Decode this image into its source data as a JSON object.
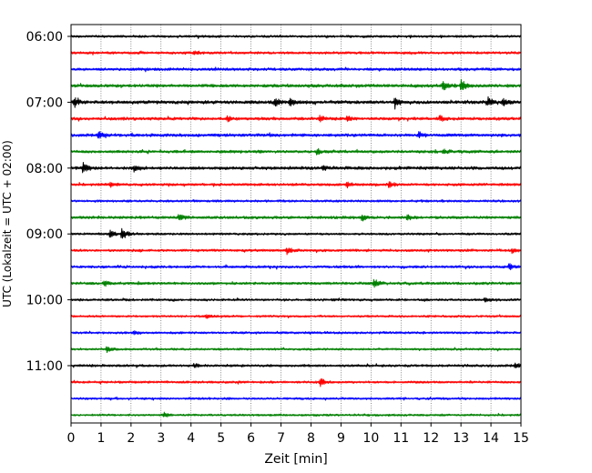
{
  "chart_data": {
    "type": "line",
    "xlabel": "Zeit  [min]",
    "ylabel": "UTC (Lokalzeit = UTC + 02:00)",
    "xlim": [
      0,
      15
    ],
    "x_ticks": [
      "0",
      "1",
      "2",
      "3",
      "4",
      "5",
      "6",
      "7",
      "8",
      "9",
      "10",
      "11",
      "12",
      "13",
      "14",
      "15"
    ],
    "y_ticks": [
      "06:00",
      "07:00",
      "08:00",
      "09:00",
      "10:00",
      "11:00"
    ],
    "vertical_grid": true,
    "row_interval_minutes": 15,
    "colors": [
      "#000000",
      "#ff0000",
      "#0000ff",
      "#008000"
    ],
    "series": [
      {
        "start": "06:00",
        "color": "#000000",
        "noise": 1.4,
        "events": []
      },
      {
        "start": "06:15",
        "color": "#ff0000",
        "noise": 1.5,
        "events": [
          [
            4.1,
            2.5
          ]
        ]
      },
      {
        "start": "06:30",
        "color": "#0000ff",
        "noise": 1.7,
        "events": []
      },
      {
        "start": "06:45",
        "color": "#008000",
        "noise": 1.9,
        "events": [
          [
            12.4,
            5.5
          ],
          [
            13.0,
            7.5
          ]
        ]
      },
      {
        "start": "07:00",
        "color": "#000000",
        "noise": 2.0,
        "events": [
          [
            0.1,
            5.5
          ],
          [
            6.8,
            5
          ],
          [
            7.3,
            4.5
          ],
          [
            10.8,
            6
          ],
          [
            13.9,
            4.5
          ],
          [
            14.4,
            4
          ]
        ]
      },
      {
        "start": "07:15",
        "color": "#ff0000",
        "noise": 1.8,
        "events": [
          [
            5.2,
            3
          ],
          [
            8.3,
            3.5
          ],
          [
            9.2,
            3
          ],
          [
            12.3,
            3
          ]
        ]
      },
      {
        "start": "07:30",
        "color": "#0000ff",
        "noise": 1.8,
        "events": [
          [
            0.9,
            4
          ],
          [
            11.6,
            3.5
          ]
        ]
      },
      {
        "start": "07:45",
        "color": "#008000",
        "noise": 1.7,
        "events": [
          [
            8.2,
            3
          ],
          [
            12.4,
            3
          ]
        ]
      },
      {
        "start": "08:00",
        "color": "#000000",
        "noise": 1.9,
        "events": [
          [
            0.4,
            6
          ],
          [
            2.1,
            3.5
          ],
          [
            8.4,
            3
          ]
        ]
      },
      {
        "start": "08:15",
        "color": "#ff0000",
        "noise": 1.6,
        "events": [
          [
            1.3,
            3
          ],
          [
            9.2,
            3
          ],
          [
            10.6,
            3.5
          ]
        ]
      },
      {
        "start": "08:30",
        "color": "#0000ff",
        "noise": 1.4,
        "events": []
      },
      {
        "start": "08:45",
        "color": "#008000",
        "noise": 1.7,
        "events": [
          [
            3.6,
            4.5
          ],
          [
            9.7,
            3
          ],
          [
            11.2,
            3
          ]
        ]
      },
      {
        "start": "09:00",
        "color": "#000000",
        "noise": 1.4,
        "events": [
          [
            1.3,
            5
          ],
          [
            1.7,
            7
          ]
        ]
      },
      {
        "start": "09:15",
        "color": "#ff0000",
        "noise": 1.5,
        "events": [
          [
            7.2,
            3.5
          ],
          [
            14.7,
            3
          ]
        ]
      },
      {
        "start": "09:30",
        "color": "#0000ff",
        "noise": 1.5,
        "events": [
          [
            14.6,
            3.5
          ]
        ]
      },
      {
        "start": "09:45",
        "color": "#008000",
        "noise": 1.6,
        "events": [
          [
            10.1,
            5.5
          ],
          [
            1.1,
            3
          ]
        ]
      },
      {
        "start": "10:00",
        "color": "#000000",
        "noise": 1.4,
        "events": [
          [
            13.8,
            3
          ]
        ]
      },
      {
        "start": "10:15",
        "color": "#ff0000",
        "noise": 1.3,
        "events": [
          [
            4.5,
            2.5
          ]
        ]
      },
      {
        "start": "10:30",
        "color": "#0000ff",
        "noise": 1.4,
        "events": [
          [
            2.1,
            2.5
          ]
        ]
      },
      {
        "start": "10:45",
        "color": "#008000",
        "noise": 1.3,
        "events": [
          [
            1.2,
            3
          ]
        ]
      },
      {
        "start": "11:00",
        "color": "#000000",
        "noise": 1.5,
        "events": [
          [
            4.1,
            2.5
          ],
          [
            14.8,
            3
          ]
        ]
      },
      {
        "start": "11:15",
        "color": "#ff0000",
        "noise": 1.4,
        "events": [
          [
            8.3,
            4.5
          ]
        ]
      },
      {
        "start": "11:30",
        "color": "#0000ff",
        "noise": 1.3,
        "events": []
      },
      {
        "start": "11:45",
        "color": "#008000",
        "noise": 1.3,
        "events": [
          [
            3.1,
            2.5
          ]
        ]
      }
    ]
  }
}
